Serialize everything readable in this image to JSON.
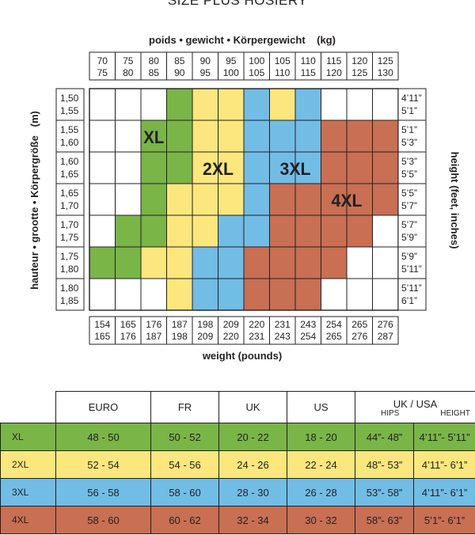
{
  "title": "SIZE PLUS HOSIERY",
  "colors": {
    "XL": "#7ab548",
    "2XL": "#fbe77e",
    "3XL": "#72bde6",
    "4XL": "#c96f53",
    "empty": "#ffffff",
    "outline": "#231f20"
  },
  "chart_data": {
    "type": "heatmap",
    "top_axis_label": "poids • gewicht • Körpergewicht    (kg)",
    "left_axis_label": "hauteur • grootte • Körpergröße   (m)",
    "right_axis_label": "height (feet, inches)",
    "bottom_axis_label": "weight (pounds)",
    "weight_kg": [
      [
        "70",
        "75"
      ],
      [
        "75",
        "80"
      ],
      [
        "80",
        "85"
      ],
      [
        "85",
        "90"
      ],
      [
        "90",
        "95"
      ],
      [
        "95",
        "100"
      ],
      [
        "100",
        "105"
      ],
      [
        "105",
        "110"
      ],
      [
        "110",
        "115"
      ],
      [
        "115",
        "120"
      ],
      [
        "120",
        "125"
      ],
      [
        "125",
        "130"
      ]
    ],
    "weight_lb": [
      [
        "154",
        "165"
      ],
      [
        "165",
        "176"
      ],
      [
        "176",
        "187"
      ],
      [
        "187",
        "198"
      ],
      [
        "198",
        "209"
      ],
      [
        "209",
        "220"
      ],
      [
        "220",
        "231"
      ],
      [
        "231",
        "243"
      ],
      [
        "243",
        "254"
      ],
      [
        "254",
        "265"
      ],
      [
        "265",
        "276"
      ],
      [
        "276",
        "287"
      ]
    ],
    "height_m": [
      [
        "1,50",
        "1,55"
      ],
      [
        "1,55",
        "1,60"
      ],
      [
        "1,60",
        "1,65"
      ],
      [
        "1,65",
        "1,70"
      ],
      [
        "1,70",
        "1,75"
      ],
      [
        "1,75",
        "1,80"
      ],
      [
        "1,80",
        "1,85"
      ]
    ],
    "height_ft": [
      [
        "4’11”",
        "5’1”"
      ],
      [
        "5’1”",
        "5’3”"
      ],
      [
        "5’3”",
        "5’5”"
      ],
      [
        "5’5”",
        "5’7”"
      ],
      [
        "5’7”",
        "5’9”"
      ],
      [
        "5’9”",
        "5’11”"
      ],
      [
        "5’11”",
        "6’1”"
      ]
    ],
    "grid": [
      [
        "",
        "",
        "",
        "XL",
        "2XL",
        "2XL",
        "3XL",
        "2XL",
        "3XL",
        "",
        "",
        ""
      ],
      [
        "",
        "",
        "XL",
        "XL",
        "2XL",
        "2XL",
        "3XL",
        "3XL",
        "3XL",
        "4XL",
        "4XL",
        "4XL"
      ],
      [
        "",
        "",
        "XL",
        "XL",
        "2XL",
        "2XL",
        "3XL",
        "3XL",
        "3XL",
        "4XL",
        "4XL",
        "4XL"
      ],
      [
        "",
        "",
        "XL",
        "2XL",
        "2XL",
        "2XL",
        "3XL",
        "4XL",
        "4XL",
        "4XL",
        "4XL",
        "4XL"
      ],
      [
        "",
        "XL",
        "XL",
        "2XL",
        "2XL",
        "3XL",
        "3XL",
        "4XL",
        "4XL",
        "4XL",
        "4XL",
        ""
      ],
      [
        "XL",
        "XL",
        "2XL",
        "2XL",
        "3XL",
        "3XL",
        "4XL",
        "4XL",
        "4XL",
        "4XL",
        "",
        ""
      ],
      [
        "",
        "",
        "",
        "2XL",
        "3XL",
        "3XL",
        "4XL",
        "4XL",
        "4XL",
        "",
        "",
        ""
      ]
    ],
    "size_labels": [
      {
        "text": "XL",
        "row": 1,
        "col": 2
      },
      {
        "text": "2XL",
        "row": 2,
        "col": 4.5
      },
      {
        "text": "3XL",
        "row": 2,
        "col": 7.5
      },
      {
        "text": "4XL",
        "row": 3,
        "col": 9.5
      }
    ]
  },
  "size_table": {
    "headers": [
      "EURO",
      "FR",
      "UK",
      "US"
    ],
    "ukusa": {
      "top": "UK / USA",
      "hips": "HIPS",
      "height": "HEIGHT"
    },
    "rows": [
      {
        "size": "XL",
        "euro": "48 - 50",
        "fr": "50 - 52",
        "uk": "20 - 22",
        "us": "18 - 20",
        "hips": "44”- 48”",
        "height": "4’11”- 5’11”"
      },
      {
        "size": "2XL",
        "euro": "52 - 54",
        "fr": "54 - 56",
        "uk": "24 - 26",
        "us": "22 - 24",
        "hips": "48”- 53”",
        "height": "4’11”- 6’1”"
      },
      {
        "size": "3XL",
        "euro": "56 - 58",
        "fr": "58 - 60",
        "uk": "28 - 30",
        "us": "26 - 28",
        "hips": "53”- 58”",
        "height": "4’11”- 6’1”"
      },
      {
        "size": "4XL",
        "euro": "58 - 60",
        "fr": "60 - 62",
        "uk": "32 - 34",
        "us": "30 - 32",
        "hips": "58”- 63”",
        "height": "5’1”- 6’1”"
      }
    ]
  }
}
